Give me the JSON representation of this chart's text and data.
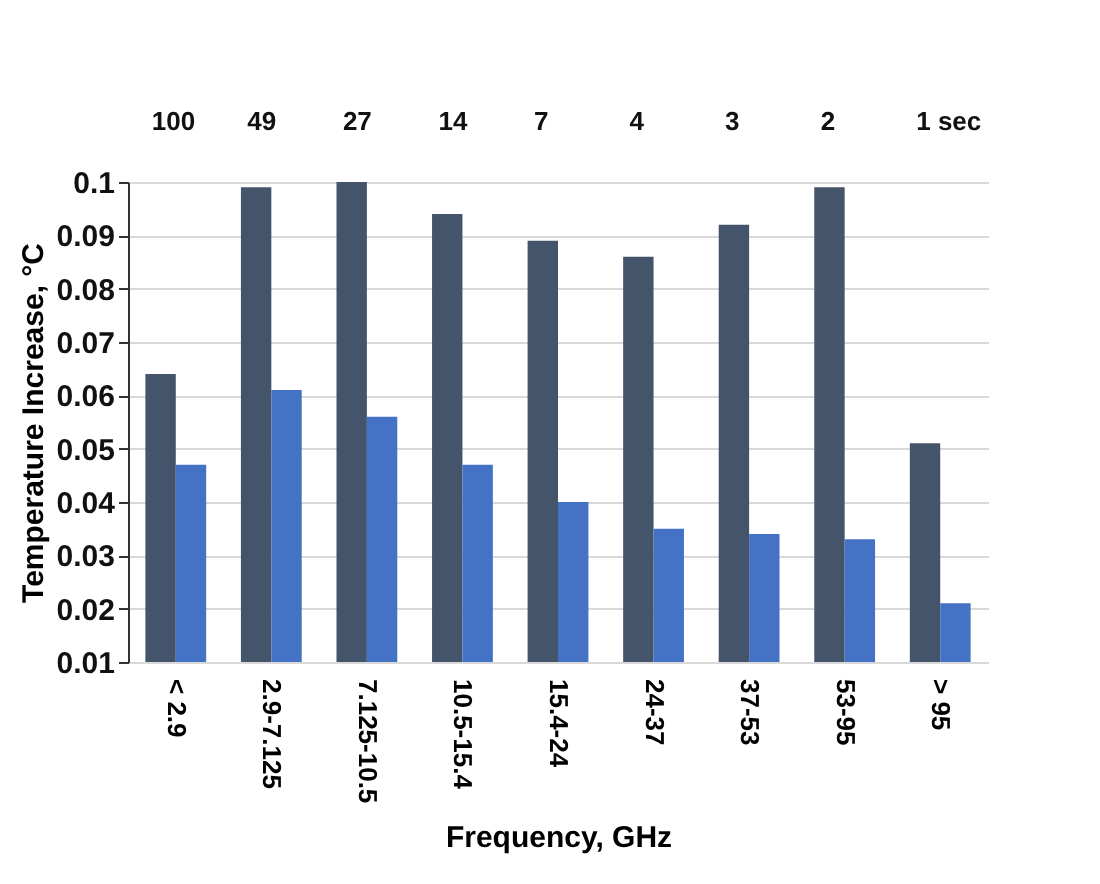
{
  "chart_data": {
    "type": "bar",
    "xlabel": "Frequency, GHz",
    "ylabel": "Temperature Increase, °C",
    "categories": [
      "< 2.9",
      "2.9-7.125",
      "7.125-10.5",
      "10.5-15.4",
      "15.4-24",
      "24-37",
      "37-53",
      "53-95",
      "> 95"
    ],
    "series": [
      {
        "color": "#44546a",
        "values": [
          0.064,
          0.099,
          0.1,
          0.094,
          0.089,
          0.086,
          0.092,
          0.099,
          0.051
        ]
      },
      {
        "color": "#4472c4",
        "values": [
          0.047,
          0.061,
          0.056,
          0.047,
          0.04,
          0.035,
          0.034,
          0.033,
          0.021
        ]
      }
    ],
    "ylim": [
      0.01,
      0.1
    ],
    "yticks": [
      0.01,
      0.02,
      0.03,
      0.04,
      0.05,
      0.06,
      0.07,
      0.08,
      0.09,
      0.1
    ],
    "grid": "y",
    "annotations": [
      "100",
      "49",
      "27",
      "14",
      "7",
      "4",
      "3",
      "2",
      "1  sec"
    ]
  }
}
